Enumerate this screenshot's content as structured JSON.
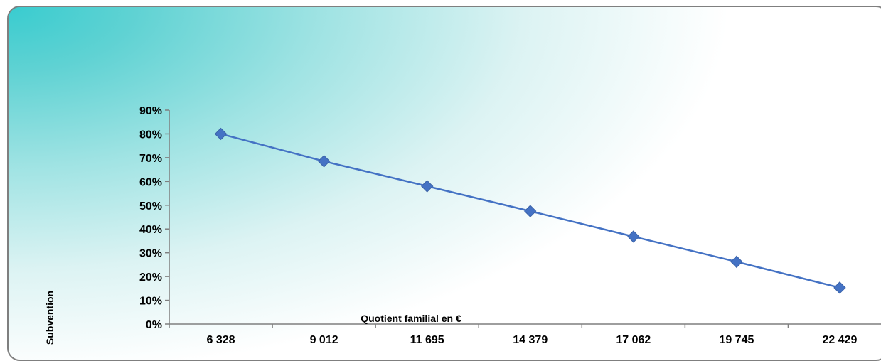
{
  "chart_data": {
    "type": "line",
    "title": "",
    "xlabel": "Quotient familial en €",
    "ylabel": "Subvention",
    "categories": [
      "6 328",
      "9 012",
      "11 695",
      "14 379",
      "17 062",
      "19 745",
      "22 429"
    ],
    "series": [
      {
        "values": [
          80,
          68.5,
          58,
          47.5,
          36.8,
          26.2,
          15.3
        ]
      }
    ],
    "ylim": [
      0,
      90
    ],
    "yticks": [
      "0%",
      "10%",
      "20%",
      "30%",
      "40%",
      "50%",
      "60%",
      "70%",
      "80%",
      "90%"
    ],
    "grid": false,
    "legend": "none",
    "colors": {
      "line": "#4472c4",
      "marker": "#4472c4",
      "axis": "#7f7f7f",
      "background_accent": "#39cccf"
    }
  }
}
